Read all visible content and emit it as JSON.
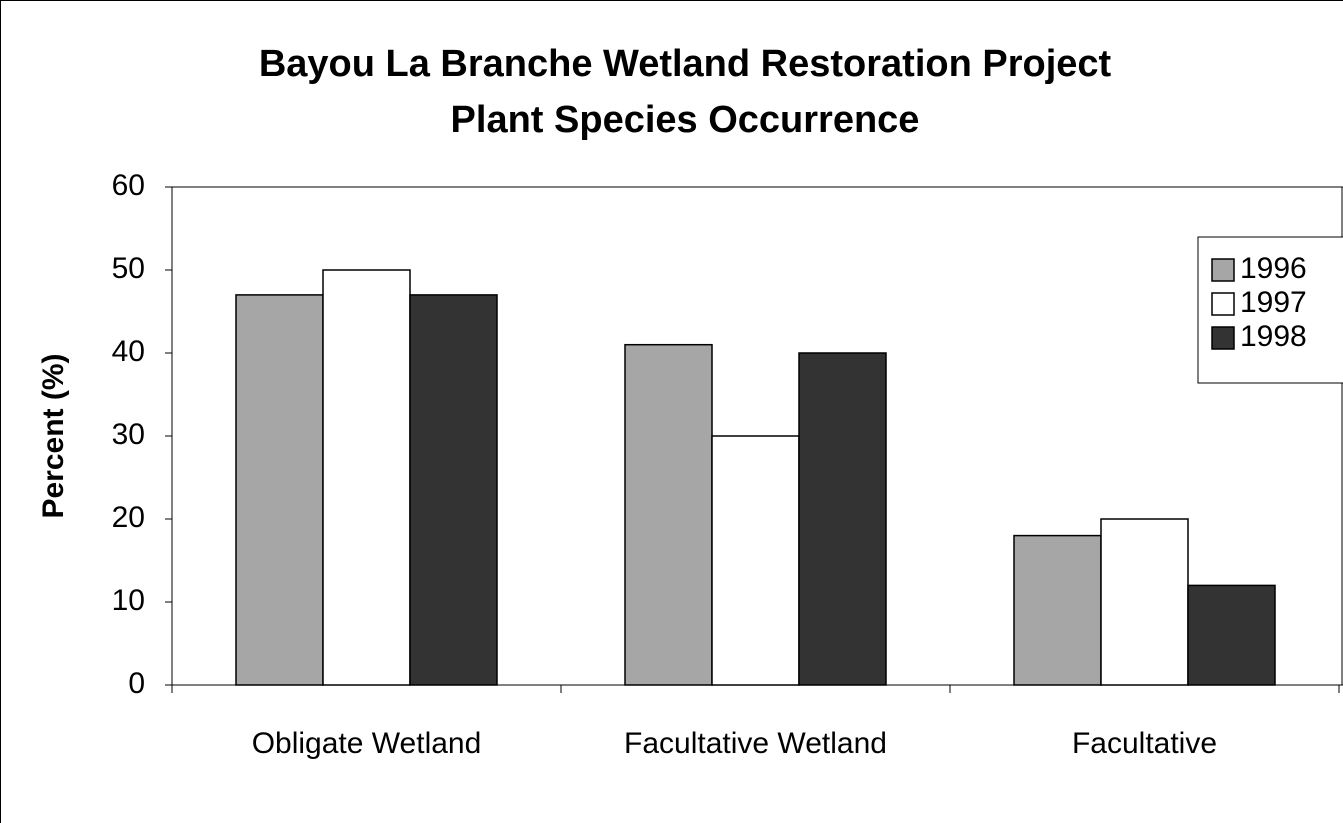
{
  "chart_data": {
    "type": "bar",
    "title": "Bayou La Branche Wetland Restoration Project",
    "subtitle": "Plant Species Occurrence",
    "y_label": "Percent (%)",
    "categories": [
      "Obligate Wetland",
      "Facultative Wetland",
      "Facultative"
    ],
    "series": [
      {
        "name": "1996",
        "color": "#a6a6a6",
        "values": [
          47,
          41,
          18
        ]
      },
      {
        "name": "1997",
        "color": "#ffffff",
        "values": [
          50,
          30,
          20
        ]
      },
      {
        "name": "1998",
        "color": "#333333",
        "values": [
          47,
          40,
          12
        ]
      }
    ],
    "ylim": [
      0,
      60
    ],
    "yticks": [
      0,
      10,
      20,
      30,
      40,
      50,
      60
    ],
    "grid": false,
    "legend": "right"
  }
}
